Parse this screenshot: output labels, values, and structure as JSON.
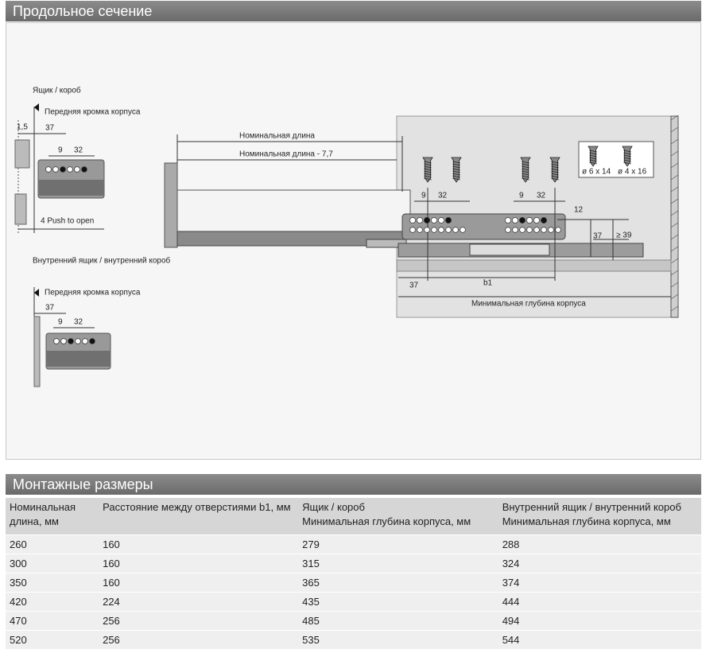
{
  "sections": {
    "drawing_title": "Продольное сечение",
    "table_title": "Монтажные размеры"
  },
  "diagram": {
    "labels": [
      "Ящик / короб",
      "Передняя кромка корпуса",
      "1,5",
      "37",
      "9",
      "32",
      "4 Push to open",
      "Внутренний ящик / внутренний короб",
      "Передняя кромка корпуса",
      "37",
      "9",
      "32",
      "Номинальная длина",
      "Номинальная длина - 7,7",
      "ø 6 x 14",
      "ø 4 x 16",
      "9",
      "32",
      "9",
      "32",
      "12",
      "37",
      "≥ 39",
      "37",
      "b1",
      "Минимальная глубина корпуса"
    ]
  },
  "table": {
    "header": [
      [
        "Номинальная",
        "длина, мм"
      ],
      [
        "Расстояние между отверстиями b1, мм"
      ],
      [
        "Ящик / короб",
        "Минимальная глубина корпуса, мм"
      ],
      [
        "Внутренний ящик / внутренний короб",
        "Минимальная глубина корпуса, мм"
      ]
    ],
    "rows": [
      [
        260,
        160,
        279,
        288
      ],
      [
        300,
        160,
        315,
        324
      ],
      [
        350,
        160,
        365,
        374
      ],
      [
        420,
        224,
        435,
        444
      ],
      [
        470,
        256,
        485,
        494
      ],
      [
        520,
        256,
        535,
        544
      ]
    ]
  }
}
